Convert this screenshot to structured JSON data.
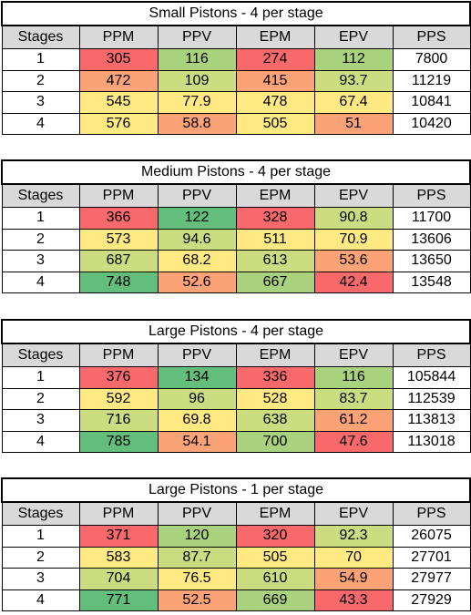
{
  "headers": [
    "Stages",
    "PPM",
    "PPV",
    "EPM",
    "EPV",
    "PPS"
  ],
  "colors": {
    "red": "#f8696b",
    "orange": "#fba276",
    "yellow": "#fee983",
    "lime": "#cbdc81",
    "green": "#63be7b",
    "light_green": "#a9d27f",
    "header_bg": "#d9d9d9"
  },
  "tables": [
    {
      "title": "Small Pistons - 4 per stage",
      "rows": [
        {
          "stage": "1",
          "ppm": "305",
          "ppv": "116",
          "epm": "274",
          "epv": "112",
          "pps": "7800",
          "colors": [
            "#f8696b",
            "#a9d27f",
            "#f8696b",
            "#a9d27f"
          ]
        },
        {
          "stage": "2",
          "ppm": "472",
          "ppv": "109",
          "epm": "415",
          "epv": "93.7",
          "pps": "11219",
          "colors": [
            "#fba276",
            "#cbdc81",
            "#fba276",
            "#cbdc81"
          ]
        },
        {
          "stage": "3",
          "ppm": "545",
          "ppv": "77.9",
          "epm": "478",
          "epv": "67.4",
          "pps": "10841",
          "colors": [
            "#fee983",
            "#fee983",
            "#fee983",
            "#fee983"
          ]
        },
        {
          "stage": "4",
          "ppm": "576",
          "ppv": "58.8",
          "epm": "505",
          "epv": "51",
          "pps": "10420",
          "colors": [
            "#fee983",
            "#fba276",
            "#fee983",
            "#fba276"
          ]
        }
      ]
    },
    {
      "title": "Medium Pistons - 4 per stage",
      "rows": [
        {
          "stage": "1",
          "ppm": "366",
          "ppv": "122",
          "epm": "328",
          "epv": "90.8",
          "pps": "11700",
          "colors": [
            "#f8696b",
            "#63be7b",
            "#f8696b",
            "#cbdc81"
          ]
        },
        {
          "stage": "2",
          "ppm": "573",
          "ppv": "94.6",
          "epm": "511",
          "epv": "70.9",
          "pps": "13606",
          "colors": [
            "#fee983",
            "#cbdc81",
            "#fee983",
            "#fee983"
          ]
        },
        {
          "stage": "3",
          "ppm": "687",
          "ppv": "68.2",
          "epm": "613",
          "epv": "53.6",
          "pps": "13650",
          "colors": [
            "#cbdc81",
            "#fee983",
            "#cbdc81",
            "#fba276"
          ]
        },
        {
          "stage": "4",
          "ppm": "748",
          "ppv": "52.6",
          "epm": "667",
          "epv": "42.4",
          "pps": "13548",
          "colors": [
            "#63be7b",
            "#fba276",
            "#a9d27f",
            "#f8696b"
          ]
        }
      ]
    },
    {
      "title": "Large Pistons - 4 per stage",
      "rows": [
        {
          "stage": "1",
          "ppm": "376",
          "ppv": "134",
          "epm": "336",
          "epv": "116",
          "pps": "105844",
          "colors": [
            "#f8696b",
            "#63be7b",
            "#f8696b",
            "#a9d27f"
          ]
        },
        {
          "stage": "2",
          "ppm": "592",
          "ppv": "96",
          "epm": "528",
          "epv": "83.7",
          "pps": "112539",
          "colors": [
            "#fee983",
            "#cbdc81",
            "#fee983",
            "#cbdc81"
          ]
        },
        {
          "stage": "3",
          "ppm": "716",
          "ppv": "69.8",
          "epm": "638",
          "epv": "61.2",
          "pps": "113813",
          "colors": [
            "#cbdc81",
            "#fee983",
            "#cbdc81",
            "#fba276"
          ]
        },
        {
          "stage": "4",
          "ppm": "785",
          "ppv": "54.1",
          "epm": "700",
          "epv": "47.6",
          "pps": "113018",
          "colors": [
            "#63be7b",
            "#fba276",
            "#a9d27f",
            "#f8696b"
          ]
        }
      ]
    },
    {
      "title": "Large Pistons - 1 per stage",
      "rows": [
        {
          "stage": "1",
          "ppm": "371",
          "ppv": "120",
          "epm": "320",
          "epv": "92.3",
          "pps": "26075",
          "colors": [
            "#f8696b",
            "#a9d27f",
            "#f8696b",
            "#cbdc81"
          ]
        },
        {
          "stage": "2",
          "ppm": "583",
          "ppv": "87.7",
          "epm": "505",
          "epv": "70",
          "pps": "27701",
          "colors": [
            "#fee983",
            "#cbdc81",
            "#fee983",
            "#fee983"
          ]
        },
        {
          "stage": "3",
          "ppm": "704",
          "ppv": "76.5",
          "epm": "610",
          "epv": "54.9",
          "pps": "27977",
          "colors": [
            "#cbdc81",
            "#fee983",
            "#cbdc81",
            "#fba276"
          ]
        },
        {
          "stage": "4",
          "ppm": "771",
          "ppv": "52.5",
          "epm": "669",
          "epv": "43.3",
          "pps": "27929",
          "colors": [
            "#63be7b",
            "#fba276",
            "#a9d27f",
            "#f8696b"
          ]
        }
      ]
    }
  ]
}
